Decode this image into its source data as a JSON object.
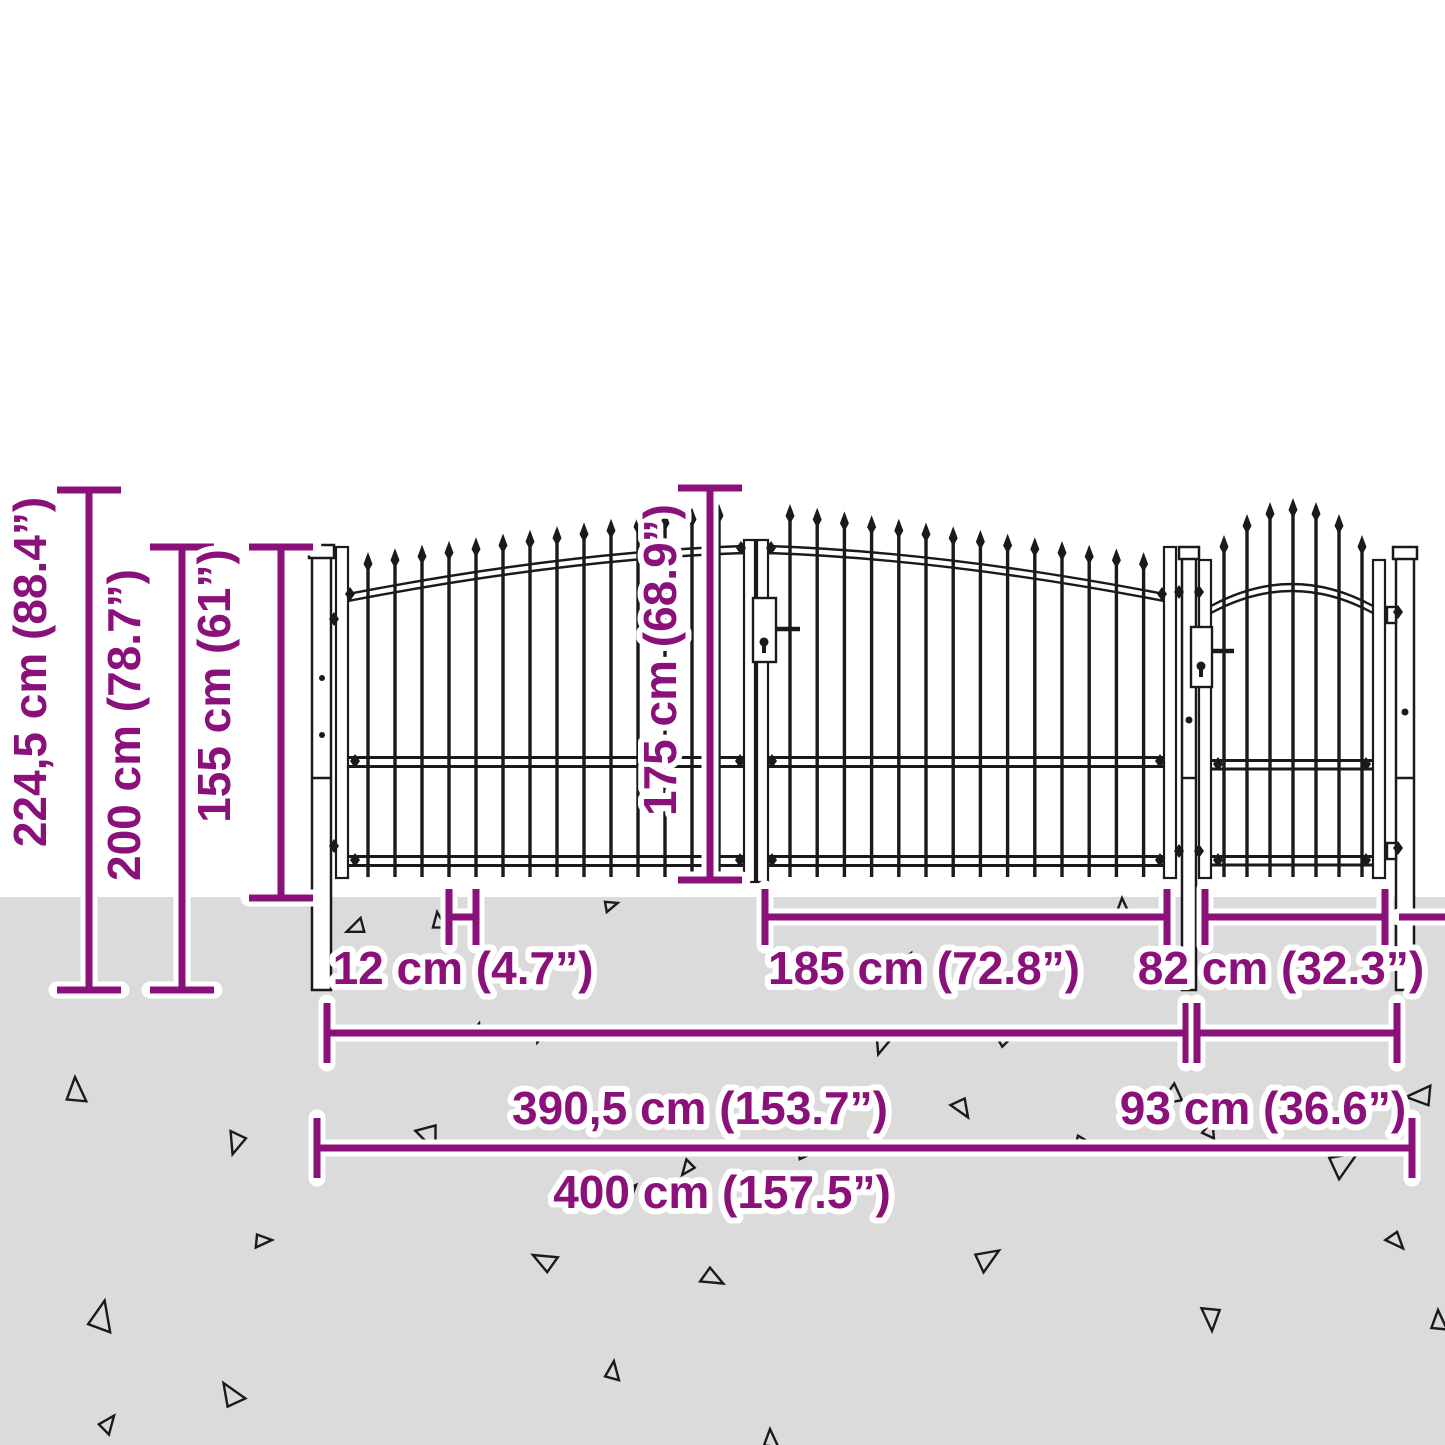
{
  "diagram": {
    "type": "product-dimension-diagram",
    "subject": "garden gate with spear top, double gate with side pedestrian gate"
  },
  "colors": {
    "accent": "#8a107a",
    "ground": "#dbdbdb",
    "line_art": "#1a1a1a",
    "background": "#ffffff"
  },
  "dimensions": {
    "vertical": [
      {
        "id": "total-height",
        "label": "224,5 cm (88.4”)"
      },
      {
        "id": "post-height",
        "label": "200 cm (78.7”)"
      },
      {
        "id": "fence-height",
        "label": "155 cm (61”)"
      },
      {
        "id": "gate-height",
        "label": "175 cm (68.9”)"
      }
    ],
    "horizontal": [
      {
        "id": "bar-spacing",
        "label": "12 cm (4.7”)"
      },
      {
        "id": "door-width",
        "label": "185 cm (72.8”)"
      },
      {
        "id": "side-gate-width",
        "label": "82 cm (32.3”)"
      },
      {
        "id": "double-gate-width",
        "label": "390,5 cm (153.7”)"
      },
      {
        "id": "side-gate-total",
        "label": "93 cm (36.6”)"
      },
      {
        "id": "total-width",
        "label": "400 cm (157.5”)"
      }
    ]
  }
}
